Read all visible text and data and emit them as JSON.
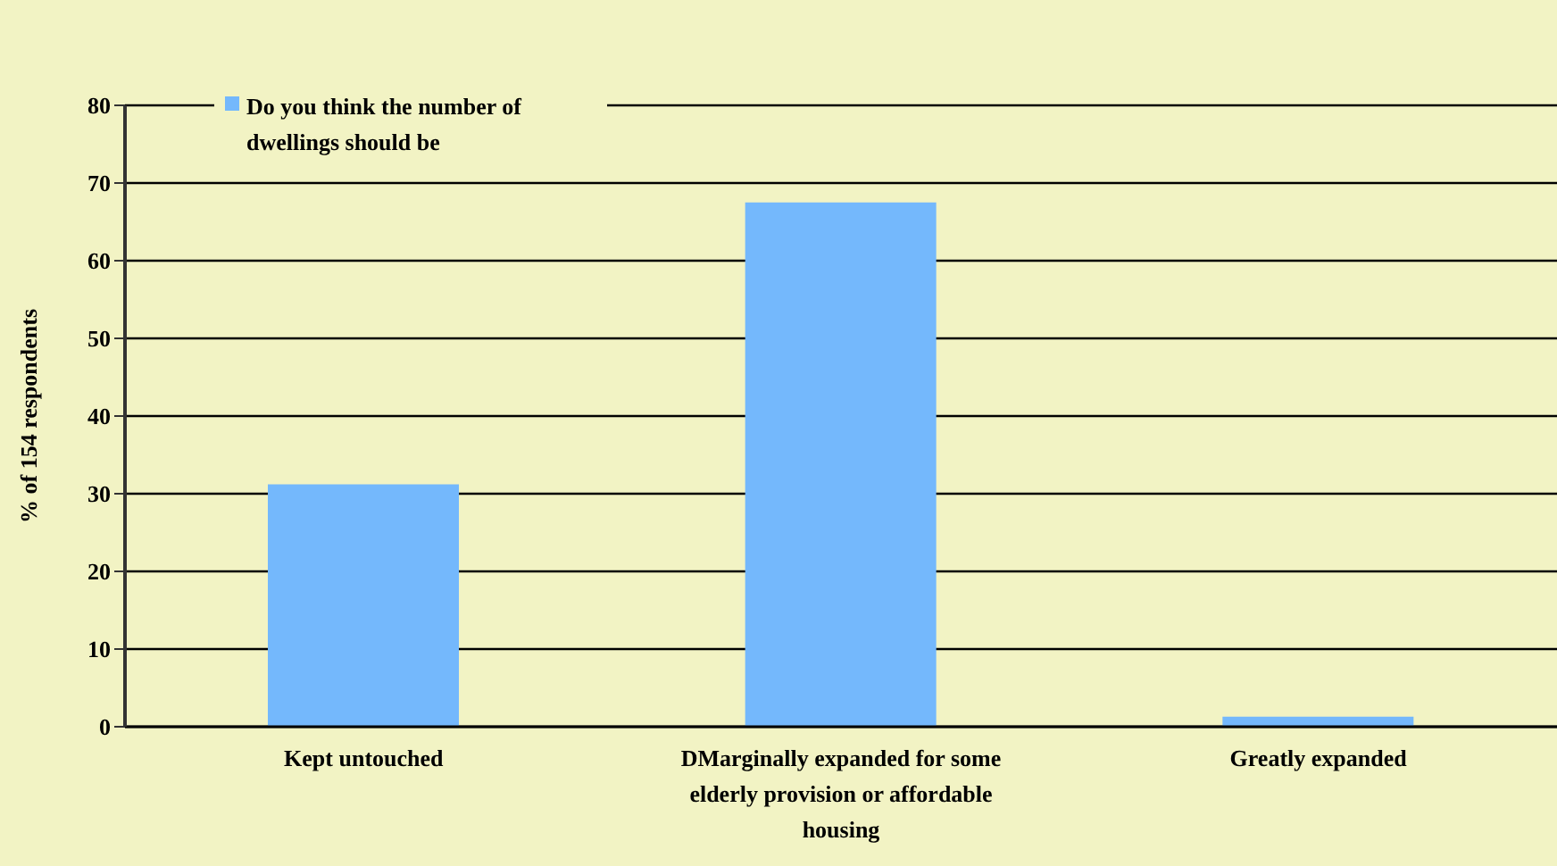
{
  "chart_data": {
    "type": "bar",
    "ylabel": "% of 154 respondents",
    "categories": [
      "Kept untouched",
      "DMarginally expanded for some elderly provision or affordable housing",
      "Greatly expanded"
    ],
    "series": [
      {
        "name": "Do you think the number of dwellings should be",
        "color": "#74b8fc",
        "values": [
          31.2,
          67.5,
          1.3
        ]
      }
    ],
    "ylim": [
      0,
      80
    ],
    "yticks": [
      0,
      10,
      20,
      30,
      40,
      50,
      60,
      70,
      80
    ],
    "grid": "y",
    "legend": "top left"
  }
}
